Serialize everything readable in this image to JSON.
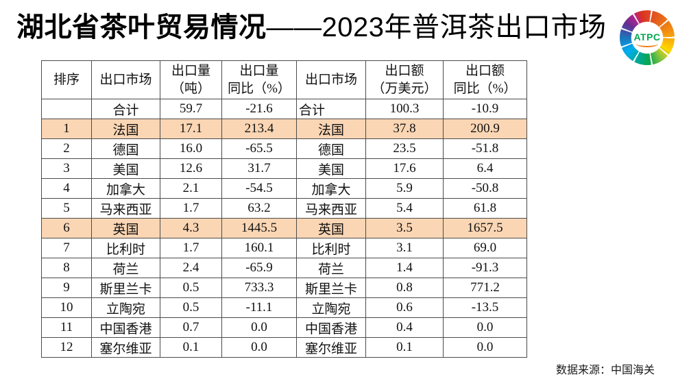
{
  "title": {
    "bold": "湖北省茶叶贸易情况",
    "light": "——2023年普洱茶出口市场"
  },
  "logo": {
    "text": "ATPC"
  },
  "table": {
    "headers": [
      {
        "l1": "排序",
        "l2": ""
      },
      {
        "l1": "出口市场",
        "l2": ""
      },
      {
        "l1": "出口量",
        "l2": "（吨）"
      },
      {
        "l1": "出口量",
        "l2": "同比（%）"
      },
      {
        "l1": "出口市场",
        "l2": ""
      },
      {
        "l1": "出口额",
        "l2": "（万美元）"
      },
      {
        "l1": "出口额",
        "l2": "同比（%）"
      }
    ],
    "rows": [
      {
        "highlight": false,
        "total": true,
        "cells": [
          "",
          "合计",
          "59.7",
          "-21.6",
          "合计",
          "100.3",
          "-10.9"
        ]
      },
      {
        "highlight": true,
        "total": false,
        "cells": [
          "1",
          "法国",
          "17.1",
          "213.4",
          "法国",
          "37.8",
          "200.9"
        ]
      },
      {
        "highlight": false,
        "total": false,
        "cells": [
          "2",
          "德国",
          "16.0",
          "-65.5",
          "德国",
          "23.5",
          "-51.8"
        ]
      },
      {
        "highlight": false,
        "total": false,
        "cells": [
          "3",
          "美国",
          "12.6",
          "31.7",
          "美国",
          "17.6",
          "6.4"
        ]
      },
      {
        "highlight": false,
        "total": false,
        "cells": [
          "4",
          "加拿大",
          "2.1",
          "-54.5",
          "加拿大",
          "5.9",
          "-50.8"
        ]
      },
      {
        "highlight": false,
        "total": false,
        "cells": [
          "5",
          "马来西亚",
          "1.7",
          "63.2",
          "马来西亚",
          "5.4",
          "61.8"
        ]
      },
      {
        "highlight": true,
        "total": false,
        "cells": [
          "6",
          "英国",
          "4.3",
          "1445.5",
          "英国",
          "3.5",
          "1657.5"
        ]
      },
      {
        "highlight": false,
        "total": false,
        "cells": [
          "7",
          "比利时",
          "1.7",
          "160.1",
          "比利时",
          "3.1",
          "69.0"
        ]
      },
      {
        "highlight": false,
        "total": false,
        "cells": [
          "8",
          "荷兰",
          "2.4",
          "-65.9",
          "荷兰",
          "1.4",
          "-91.3"
        ]
      },
      {
        "highlight": false,
        "total": false,
        "cells": [
          "9",
          "斯里兰卡",
          "0.5",
          "733.3",
          "斯里兰卡",
          "0.8",
          "771.2"
        ]
      },
      {
        "highlight": false,
        "total": false,
        "cells": [
          "10",
          "立陶宛",
          "0.5",
          "-11.1",
          "立陶宛",
          "0.6",
          "-13.5"
        ]
      },
      {
        "highlight": false,
        "total": false,
        "cells": [
          "11",
          "中国香港",
          "0.7",
          "0.0",
          "中国香港",
          "0.4",
          "0.0"
        ]
      },
      {
        "highlight": false,
        "total": false,
        "cells": [
          "12",
          "塞尔维亚",
          "0.1",
          "0.0",
          "塞尔维亚",
          "0.1",
          "0.0"
        ]
      }
    ]
  },
  "source": "数据来源：中国海关",
  "colors": {
    "row_highlight": "#fbd6b4",
    "logo_text_green": "#00a651",
    "border": "#4a4a4a"
  }
}
